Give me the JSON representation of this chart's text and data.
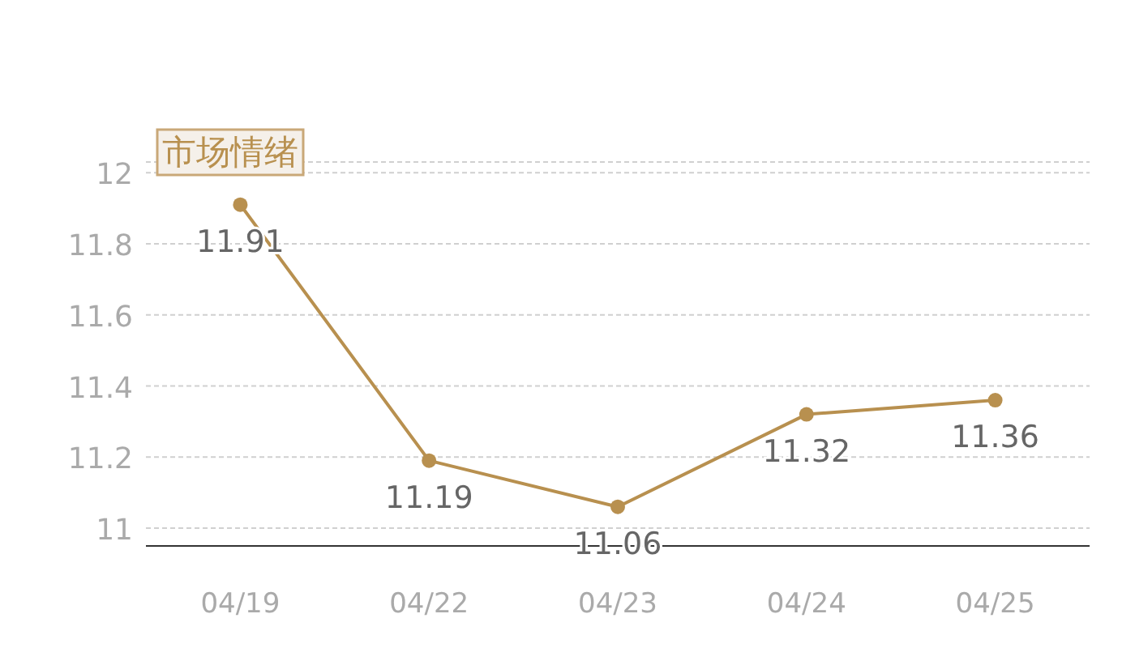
{
  "chart_data": {
    "type": "line",
    "title": "市场情绪",
    "categories": [
      "04/19",
      "04/22",
      "04/23",
      "04/24",
      "04/25"
    ],
    "series": [
      {
        "color": "#b8904f",
        "values": [
          11.91,
          11.19,
          11.06,
          11.32,
          11.36
        ]
      }
    ],
    "ylim": [
      10.95,
      12.03
    ],
    "yticks": [
      11,
      11.2,
      11.4,
      11.6,
      11.8,
      12
    ],
    "grid": "y",
    "marker": "circle",
    "line_style": "solid",
    "data_labels": true
  }
}
